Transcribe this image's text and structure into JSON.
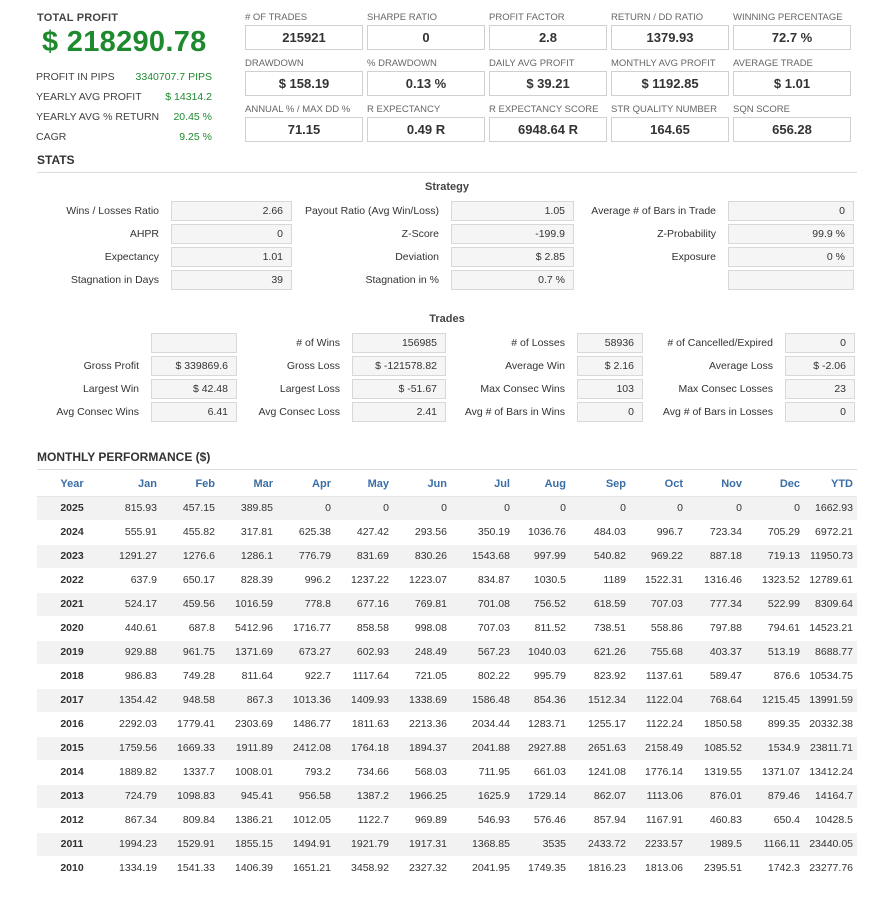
{
  "header": {
    "total_profit_label": "TOTAL PROFIT",
    "total_profit_value": "$ 218290.78",
    "summary": [
      {
        "label": "PROFIT IN PIPS",
        "value": "3340707.7 PIPS"
      },
      {
        "label": "YEARLY AVG PROFIT",
        "value": "$ 14314.2"
      },
      {
        "label": "YEARLY AVG % RETURN",
        "value": "20.45 %"
      },
      {
        "label": "CAGR",
        "value": "9.25 %"
      }
    ],
    "metrics": [
      {
        "label": "# OF TRADES",
        "value": "215921"
      },
      {
        "label": "SHARPE RATIO",
        "value": "0"
      },
      {
        "label": "PROFIT FACTOR",
        "value": "2.8"
      },
      {
        "label": "RETURN / DD RATIO",
        "value": "1379.93"
      },
      {
        "label": "WINNING PERCENTAGE",
        "value": "72.7 %"
      },
      {
        "label": "DRAWDOWN",
        "value": "$ 158.19"
      },
      {
        "label": "% DRAWDOWN",
        "value": "0.13 %"
      },
      {
        "label": "DAILY AVG PROFIT",
        "value": "$ 39.21"
      },
      {
        "label": "MONTHLY AVG PROFIT",
        "value": "$ 1192.85"
      },
      {
        "label": "AVERAGE TRADE",
        "value": "$ 1.01"
      },
      {
        "label": "ANNUAL % / MAX DD %",
        "value": "71.15"
      },
      {
        "label": "R EXPECTANCY",
        "value": "0.49 R"
      },
      {
        "label": "R EXPECTANCY SCORE",
        "value": "6948.64 R"
      },
      {
        "label": "STR QUALITY NUMBER",
        "value": "164.65"
      },
      {
        "label": "SQN SCORE",
        "value": "656.28"
      }
    ]
  },
  "stats": {
    "title": "STATS",
    "strategy": {
      "title": "Strategy",
      "fields": [
        {
          "label": "Wins / Losses Ratio",
          "value": "2.66"
        },
        {
          "label": "Payout Ratio (Avg Win/Loss)",
          "value": "1.05"
        },
        {
          "label": "Average # of Bars in Trade",
          "value": "0"
        },
        {
          "label": "AHPR",
          "value": "0"
        },
        {
          "label": "Z-Score",
          "value": "-199.9"
        },
        {
          "label": "Z-Probability",
          "value": "99.9 %"
        },
        {
          "label": "Expectancy",
          "value": "1.01"
        },
        {
          "label": "Deviation",
          "value": "$ 2.85"
        },
        {
          "label": "Exposure",
          "value": "0 %"
        },
        {
          "label": "Stagnation in Days",
          "value": "39"
        },
        {
          "label": "Stagnation in %",
          "value": "0.7 %"
        },
        {
          "label": "",
          "value": ""
        }
      ]
    },
    "trades": {
      "title": "Trades",
      "fields": [
        {
          "label": "",
          "value": ""
        },
        {
          "label": "# of Wins",
          "value": "156985"
        },
        {
          "label": "# of Losses",
          "value": "58936"
        },
        {
          "label": "# of Cancelled/Expired",
          "value": "0"
        },
        {
          "label": "Gross Profit",
          "value": "$ 339869.6"
        },
        {
          "label": "Gross Loss",
          "value": "$ -121578.82"
        },
        {
          "label": "Average Win",
          "value": "$ 2.16"
        },
        {
          "label": "Average Loss",
          "value": "$ -2.06"
        },
        {
          "label": "Largest Win",
          "value": "$ 42.48"
        },
        {
          "label": "Largest Loss",
          "value": "$ -51.67"
        },
        {
          "label": "Max Consec Wins",
          "value": "103"
        },
        {
          "label": "Max Consec Losses",
          "value": "23"
        },
        {
          "label": "Avg Consec Wins",
          "value": "6.41"
        },
        {
          "label": "Avg Consec Loss",
          "value": "2.41"
        },
        {
          "label": "Avg # of Bars in Wins",
          "value": "0"
        },
        {
          "label": "Avg # of Bars in Losses",
          "value": "0"
        }
      ]
    }
  },
  "monthly": {
    "title": "MONTHLY PERFORMANCE ($)",
    "columns": [
      "Year",
      "Jan",
      "Feb",
      "Mar",
      "Apr",
      "May",
      "Jun",
      "Jul",
      "Aug",
      "Sep",
      "Oct",
      "Nov",
      "Dec",
      "YTD"
    ],
    "rows": [
      [
        "2025",
        "815.93",
        "457.15",
        "389.85",
        "0",
        "0",
        "0",
        "0",
        "0",
        "0",
        "0",
        "0",
        "0",
        "1662.93"
      ],
      [
        "2024",
        "555.91",
        "455.82",
        "317.81",
        "625.38",
        "427.42",
        "293.56",
        "350.19",
        "1036.76",
        "484.03",
        "996.7",
        "723.34",
        "705.29",
        "6972.21"
      ],
      [
        "2023",
        "1291.27",
        "1276.6",
        "1286.1",
        "776.79",
        "831.69",
        "830.26",
        "1543.68",
        "997.99",
        "540.82",
        "969.22",
        "887.18",
        "719.13",
        "11950.73"
      ],
      [
        "2022",
        "637.9",
        "650.17",
        "828.39",
        "996.2",
        "1237.22",
        "1223.07",
        "834.87",
        "1030.5",
        "1189",
        "1522.31",
        "1316.46",
        "1323.52",
        "12789.61"
      ],
      [
        "2021",
        "524.17",
        "459.56",
        "1016.59",
        "778.8",
        "677.16",
        "769.81",
        "701.08",
        "756.52",
        "618.59",
        "707.03",
        "777.34",
        "522.99",
        "8309.64"
      ],
      [
        "2020",
        "440.61",
        "687.8",
        "5412.96",
        "1716.77",
        "858.58",
        "998.08",
        "707.03",
        "811.52",
        "738.51",
        "558.86",
        "797.88",
        "794.61",
        "14523.21"
      ],
      [
        "2019",
        "929.88",
        "961.75",
        "1371.69",
        "673.27",
        "602.93",
        "248.49",
        "567.23",
        "1040.03",
        "621.26",
        "755.68",
        "403.37",
        "513.19",
        "8688.77"
      ],
      [
        "2018",
        "986.83",
        "749.28",
        "811.64",
        "922.7",
        "1117.64",
        "721.05",
        "802.22",
        "995.79",
        "823.92",
        "1137.61",
        "589.47",
        "876.6",
        "10534.75"
      ],
      [
        "2017",
        "1354.42",
        "948.58",
        "867.3",
        "1013.36",
        "1409.93",
        "1338.69",
        "1586.48",
        "854.36",
        "1512.34",
        "1122.04",
        "768.64",
        "1215.45",
        "13991.59"
      ],
      [
        "2016",
        "2292.03",
        "1779.41",
        "2303.69",
        "1486.77",
        "1811.63",
        "2213.36",
        "2034.44",
        "1283.71",
        "1255.17",
        "1122.24",
        "1850.58",
        "899.35",
        "20332.38"
      ],
      [
        "2015",
        "1759.56",
        "1669.33",
        "1911.89",
        "2412.08",
        "1764.18",
        "1894.37",
        "2041.88",
        "2927.88",
        "2651.63",
        "2158.49",
        "1085.52",
        "1534.9",
        "23811.71"
      ],
      [
        "2014",
        "1889.82",
        "1337.7",
        "1008.01",
        "793.2",
        "734.66",
        "568.03",
        "711.95",
        "661.03",
        "1241.08",
        "1776.14",
        "1319.55",
        "1371.07",
        "13412.24"
      ],
      [
        "2013",
        "724.79",
        "1098.83",
        "945.41",
        "956.58",
        "1387.2",
        "1966.25",
        "1625.9",
        "1729.14",
        "862.07",
        "1113.06",
        "876.01",
        "879.46",
        "14164.7"
      ],
      [
        "2012",
        "867.34",
        "809.84",
        "1386.21",
        "1012.05",
        "1122.7",
        "969.89",
        "546.93",
        "576.46",
        "857.94",
        "1167.91",
        "460.83",
        "650.4",
        "10428.5"
      ],
      [
        "2011",
        "1994.23",
        "1529.91",
        "1855.15",
        "1494.91",
        "1921.79",
        "1917.31",
        "1368.85",
        "3535",
        "2433.72",
        "2233.57",
        "1989.5",
        "1166.11",
        "23440.05"
      ],
      [
        "2010",
        "1334.19",
        "1541.33",
        "1406.39",
        "1651.21",
        "3458.92",
        "2327.32",
        "2041.95",
        "1749.35",
        "1816.23",
        "1813.06",
        "2395.51",
        "1742.3",
        "23277.76"
      ]
    ]
  }
}
